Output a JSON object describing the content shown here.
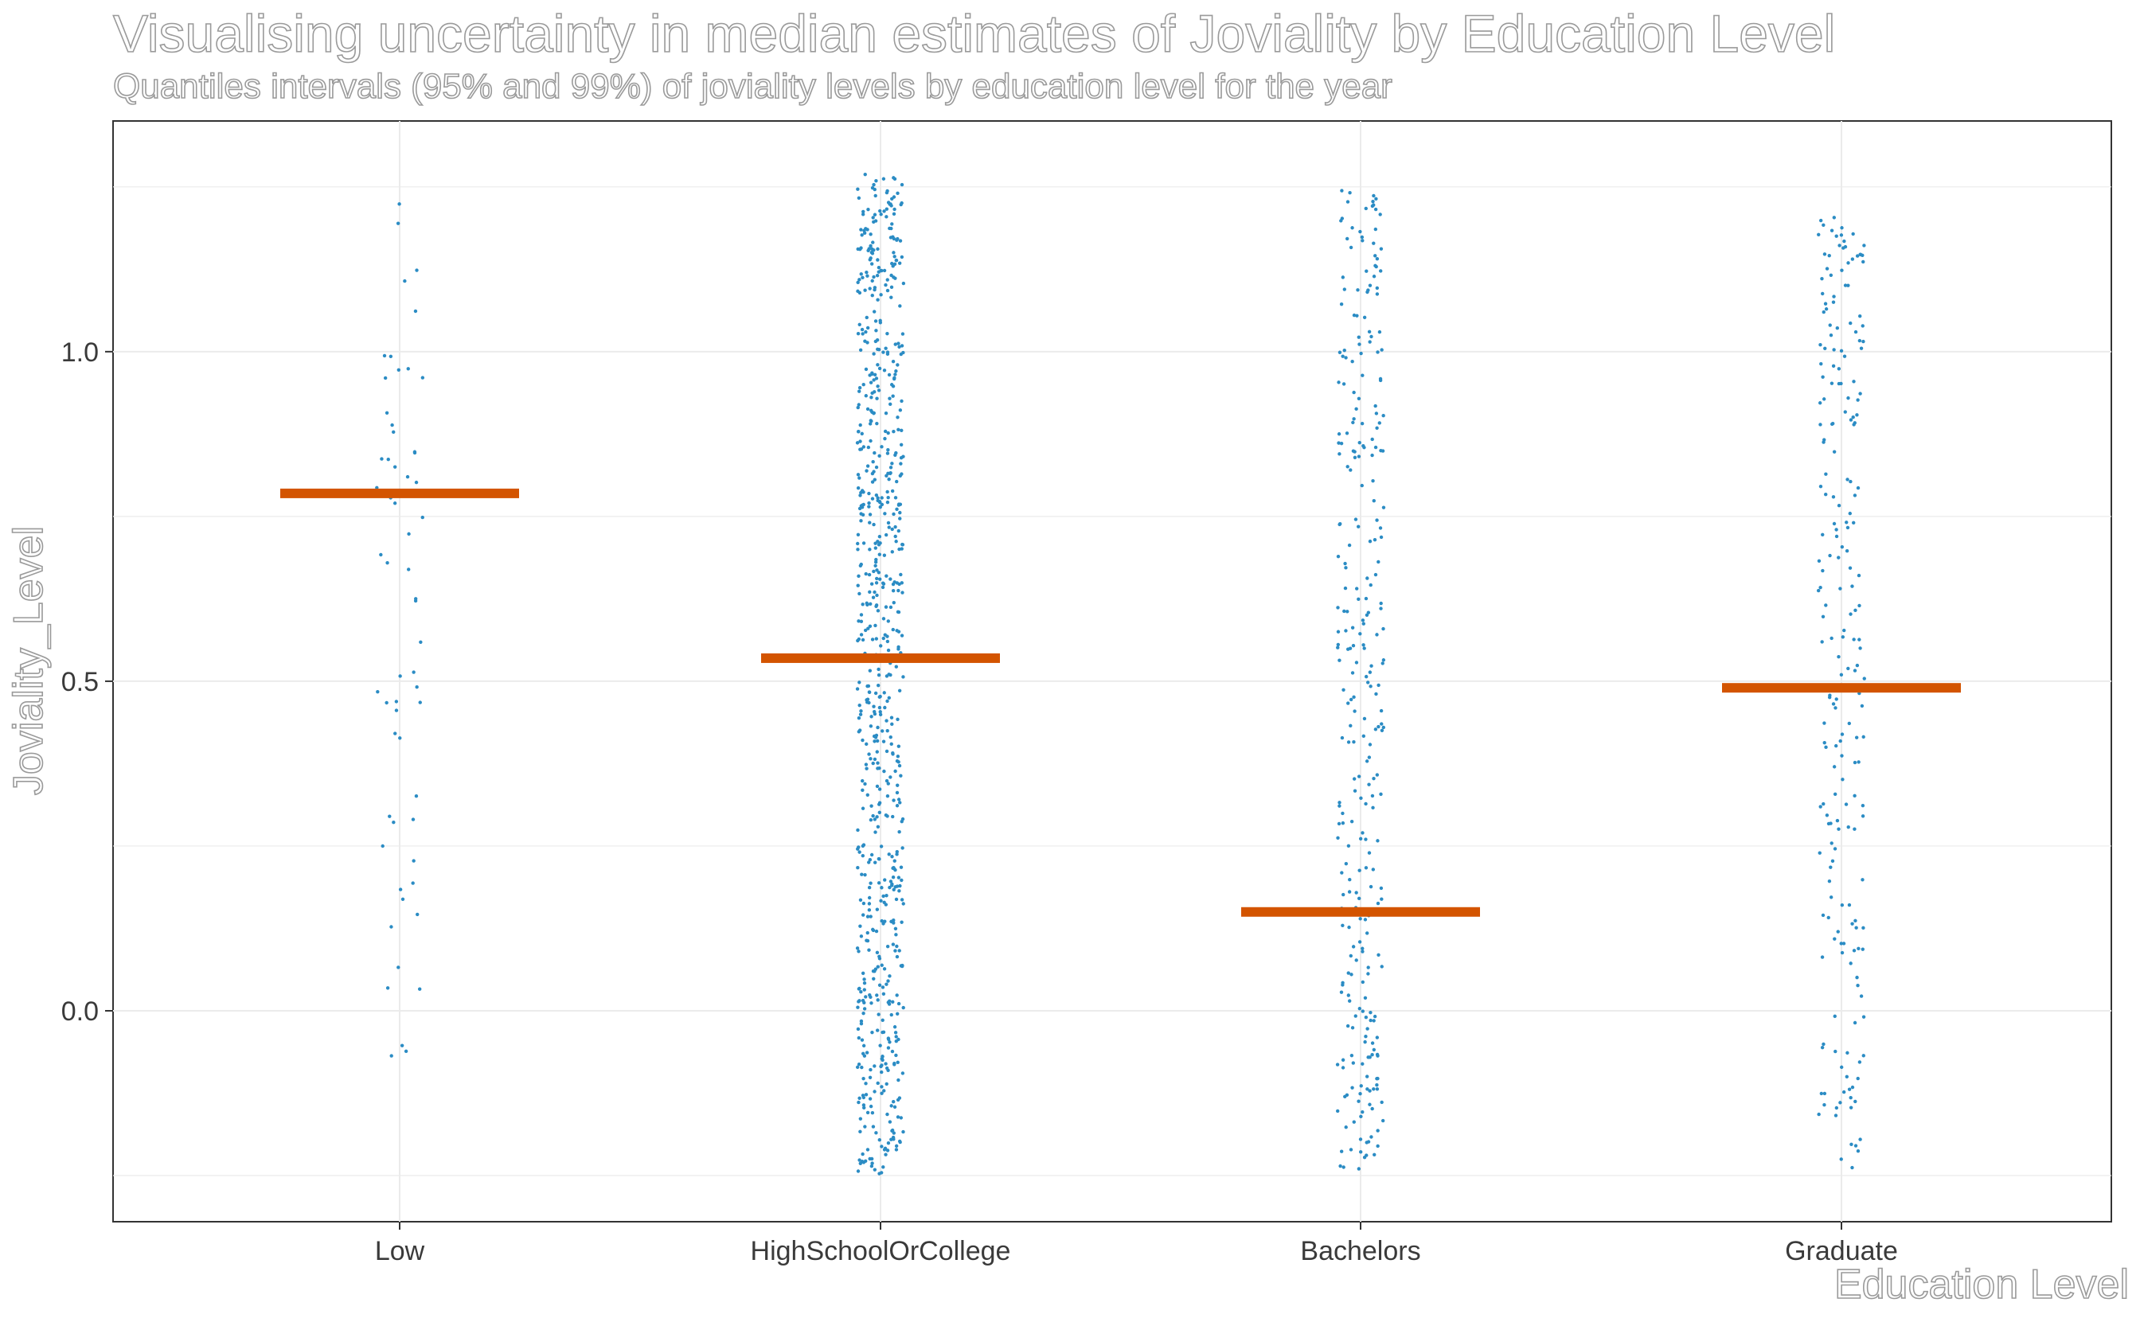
{
  "chart_data": {
    "type": "scatter",
    "title": "Visualising uncertainty in median estimates of Joviality by Education Level",
    "subtitle": "Quantiles intervals (95% and 99%) of joviality levels by education level for the year",
    "xlabel": "Education Level",
    "ylabel": "Joviality_Level",
    "categories": [
      "Low",
      "HighSchoolOrCollege",
      "Bachelors",
      "Graduate"
    ],
    "ylim": [
      -0.32,
      1.35
    ],
    "y_ticks": [
      "0.0",
      "0.5",
      "1.0"
    ],
    "grid": true,
    "point_color": "#2b8cc4",
    "median_color": "#d35400",
    "medians": [
      0.785,
      0.535,
      0.15,
      0.49
    ],
    "point_counts": [
      60,
      750,
      300,
      220
    ],
    "y_ranges": [
      [
        -0.08,
        1.23
      ],
      [
        -0.25,
        1.27
      ],
      [
        -0.24,
        1.26
      ],
      [
        -0.25,
        1.21
      ]
    ]
  }
}
